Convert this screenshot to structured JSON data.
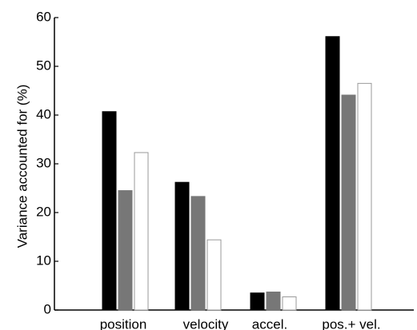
{
  "chart_data": {
    "type": "bar",
    "title": "",
    "xlabel": "",
    "ylabel": "Variance accounted for (%)",
    "ylim": [
      0,
      60
    ],
    "yticks": [
      0,
      10,
      20,
      30,
      40,
      50,
      60
    ],
    "categories": [
      "position",
      "velocity",
      "accel.",
      "pos.+ vel."
    ],
    "series": [
      {
        "values": [
          40.7,
          26.2,
          3.5,
          56.1
        ],
        "color": "#000000"
      },
      {
        "values": [
          24.5,
          23.3,
          3.7,
          44.1
        ],
        "color": "#777777"
      },
      {
        "values": [
          32.3,
          14.4,
          2.7,
          46.5
        ],
        "color": "#ffffff"
      }
    ],
    "grid": false,
    "legend": "none"
  }
}
